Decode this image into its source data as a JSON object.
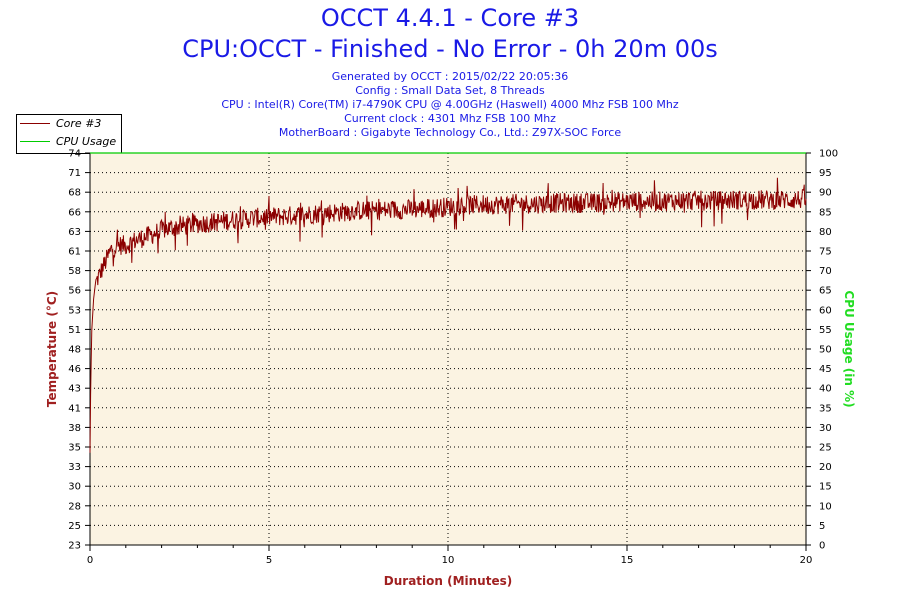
{
  "header": {
    "title": "OCCT 4.4.1 - Core #3",
    "subtitle": "CPU:OCCT - Finished - No Error - 0h 20m 00s",
    "info_lines": [
      "Generated by OCCT : 2015/02/22 20:05:36",
      "Config : Small Data Set, 8 Threads",
      "CPU : Intel(R) Core(TM) i7-4790K CPU @ 4.00GHz (Haswell) 4000 Mhz FSB 100 Mhz",
      "Current clock : 4301 Mhz FSB 100 Mhz",
      "MotherBoard : Gigabyte Technology Co., Ltd.: Z97X-SOC Force"
    ]
  },
  "legend": {
    "items": [
      {
        "label": "Core #3",
        "color": "#8b0000"
      },
      {
        "label": "CPU Usage",
        "color": "#00cc00"
      }
    ]
  },
  "chart_data": {
    "type": "line",
    "xlabel": "Duration (Minutes)",
    "ylabel": "Temperature (°C)",
    "y2label": "CPU Usage (in %)",
    "xlim": [
      0,
      20
    ],
    "ylim": [
      23,
      74
    ],
    "y2lim": [
      0,
      100
    ],
    "x_ticks": [
      "0",
      "5",
      "10",
      "15",
      "20"
    ],
    "y_ticks": [
      "23",
      "25",
      "28",
      "30",
      "33",
      "35",
      "38",
      "41",
      "43",
      "46",
      "48",
      "51",
      "53",
      "56",
      "58",
      "61",
      "63",
      "66",
      "68",
      "71",
      "74"
    ],
    "y2_ticks": [
      "0",
      "5",
      "10",
      "15",
      "20",
      "25",
      "30",
      "35",
      "40",
      "45",
      "50",
      "55",
      "60",
      "65",
      "70",
      "75",
      "80",
      "85",
      "90",
      "95",
      "100"
    ],
    "grid": true,
    "legend_position": "top-left",
    "colors": {
      "temperature": "#8b0000",
      "cpu_usage": "#00cc00",
      "plot_background": "#fbf3e2",
      "xlabel": "#a02020",
      "ylabel": "#a02020",
      "y2label": "#22dd22"
    },
    "series": [
      {
        "name": "Core #3",
        "axis": "left",
        "x": [
          0,
          0.02,
          0.05,
          0.1,
          0.15,
          0.2,
          0.3,
          0.4,
          0.5,
          0.6,
          0.8,
          1.0,
          1.2,
          1.5,
          1.8,
          2.0,
          2.3,
          2.6,
          3.0,
          3.5,
          4.0,
          4.5,
          5.0,
          5.5,
          6.0,
          6.5,
          7.0,
          7.5,
          8.0,
          8.5,
          9.0,
          9.5,
          10.0,
          10.5,
          11.0,
          11.5,
          12.0,
          12.5,
          13.0,
          13.5,
          14.0,
          14.5,
          15.0,
          15.5,
          16.0,
          16.5,
          17.0,
          17.5,
          18.0,
          18.5,
          19.0,
          19.5,
          20.0
        ],
        "values": [
          35,
          44,
          51,
          55,
          57,
          57.5,
          58.5,
          59.5,
          60.5,
          61.5,
          62,
          62,
          62.5,
          63,
          63.5,
          64,
          64.3,
          64.5,
          64.8,
          65,
          65.3,
          65.5,
          65.7,
          65.8,
          66,
          66.2,
          66.3,
          66.5,
          66.5,
          66.6,
          66.7,
          66.8,
          67,
          67.2,
          67.3,
          67.3,
          67.4,
          67.4,
          67.5,
          67.5,
          67.5,
          67.6,
          67.7,
          67.7,
          67.7,
          67.8,
          67.8,
          67.8,
          67.9,
          67.9,
          67.9,
          67.9,
          68
        ]
      },
      {
        "name": "CPU Usage",
        "axis": "right",
        "x": [
          0,
          20
        ],
        "values": [
          100,
          100
        ]
      }
    ]
  }
}
